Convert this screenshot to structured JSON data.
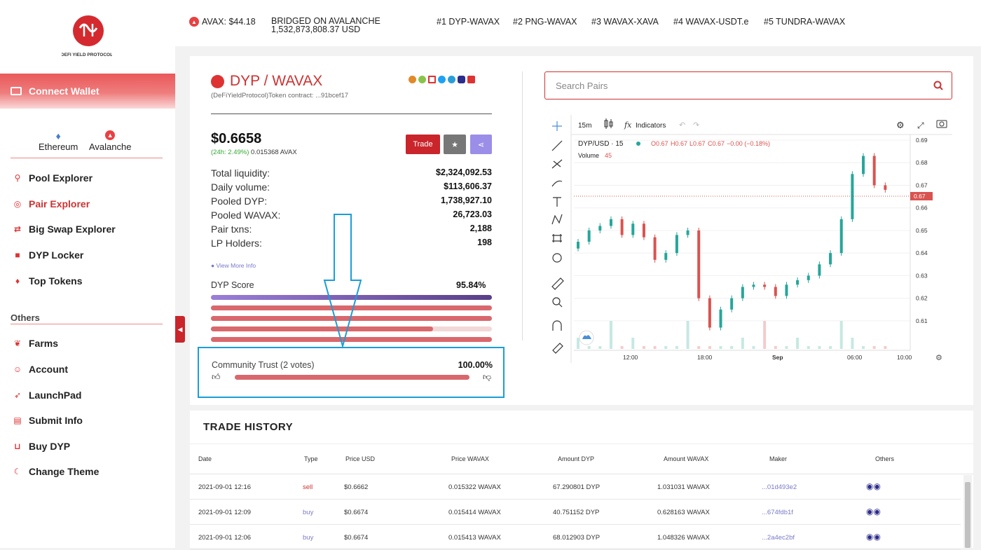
{
  "brand": {
    "name": "DeFi Yield Protocol"
  },
  "sidebar": {
    "connect_wallet": "Connect Wallet",
    "chains": [
      "Ethereum",
      "Avalanche"
    ],
    "nav": [
      "Pool Explorer",
      "Pair Explorer",
      "Big Swap Explorer",
      "DYP Locker",
      "Top Tokens"
    ],
    "others_label": "Others",
    "others": [
      "Farms",
      "Account",
      "LaunchPad",
      "Submit Info",
      "Buy DYP",
      "Change Theme"
    ],
    "active_item": "Pair Explorer"
  },
  "topbar": {
    "avax_price": "AVAX: $44.18",
    "bridged_label": "BRIDGED ON AVALANCHE",
    "bridged_value": "1,532,873,808.37 USD",
    "top_pairs": [
      "#1 DYP-WAVAX",
      "#2 PNG-WAVAX",
      "#3 WAVAX-XAVA",
      "#4 WAVAX-USDT.e",
      "#5 TUNDRA-WAVAX"
    ]
  },
  "pair": {
    "title": "DYP / WAVAX",
    "contract": "(DeFiYieldProtocol)Token contract: ...91bcef17",
    "price": "$0.6658",
    "change": "(24h: 2.49%)",
    "avax_price": "0.015368 AVAX",
    "trade_label": "Trade",
    "stats": [
      {
        "label": "Total liquidity:",
        "value": "$2,324,092.53"
      },
      {
        "label": "Daily volume:",
        "value": "$113,606.37"
      },
      {
        "label": "Pooled DYP:",
        "value": "1,738,927.10"
      },
      {
        "label": "Pooled WAVAX:",
        "value": "26,723.03"
      },
      {
        "label": "Pair txns:",
        "value": "2,188"
      },
      {
        "label": "LP Holders:",
        "value": "198"
      }
    ],
    "view_more": "View More Info",
    "score_label": "DYP Score",
    "score_value": "95.84%",
    "score_bars": [
      1.0,
      1.0,
      1.0,
      0.79,
      1.0
    ],
    "trust_label": "Community Trust (2 votes)",
    "trust_value": "100.00%",
    "trust_fill": 1.0
  },
  "search": {
    "placeholder": "Search Pairs"
  },
  "chart": {
    "interval": "15m",
    "indicators_label": "Indicators",
    "symbol": "DYP/USD · 15",
    "ohlc": {
      "o": "O0.67",
      "h": "H0.67",
      "l": "L0.67",
      "c": "C0.67",
      "chg": "−0.00 (−0.18%)"
    },
    "volume_label": "Volume",
    "volume_value": "45",
    "price_ticks": [
      "0.69",
      "0.68",
      "0.67",
      "0.66",
      "0.65",
      "0.64",
      "0.63",
      "0.62",
      "0.61"
    ],
    "last_price": "0.67",
    "time_ticks": [
      "12:00",
      "18:00",
      "Sep",
      "06:00",
      "10:00"
    ]
  },
  "chart_data": {
    "type": "candlestick",
    "title": "",
    "x_range": [
      "08-31 ~09:00",
      "09-01 ~12:00"
    ],
    "y_range": [
      0.605,
      0.69
    ],
    "ylabel": "",
    "candles_approx": [
      0.645,
      0.65,
      0.652,
      0.655,
      0.648,
      0.653,
      0.647,
      0.637,
      0.64,
      0.648,
      0.65,
      0.62,
      0.607,
      0.615,
      0.62,
      0.625,
      0.626,
      0.625,
      0.621,
      0.626,
      0.628,
      0.63,
      0.635,
      0.64,
      0.655,
      0.675,
      0.683,
      0.67,
      0.668
    ]
  },
  "trade_history": {
    "title": "TRADE HISTORY",
    "columns": [
      "Date",
      "Type",
      "Price USD",
      "Price WAVAX",
      "Amount DYP",
      "Amount WAVAX",
      "Maker",
      "Others"
    ],
    "rows": [
      {
        "date": "2021-09-01 12:16",
        "type": "sell",
        "usd": "$0.6662",
        "wavax": "0.015322 WAVAX",
        "dyp": "67.290801 DYP",
        "amt_wavax": "1.031031 WAVAX",
        "maker": "...01d493e2"
      },
      {
        "date": "2021-09-01 12:09",
        "type": "buy",
        "usd": "$0.6674",
        "wavax": "0.015414 WAVAX",
        "dyp": "40.751152 DYP",
        "amt_wavax": "0.628163 WAVAX",
        "maker": "...674fdb1f"
      },
      {
        "date": "2021-09-01 12:06",
        "type": "buy",
        "usd": "$0.6674",
        "wavax": "0.015413 WAVAX",
        "dyp": "68.012903 DYP",
        "amt_wavax": "1.048326 WAVAX",
        "maker": "...2a4ec2bf"
      }
    ]
  },
  "colors": {
    "brand_red": "#c9252b",
    "buy_purple": "#7a7acc",
    "score_purple": "#6b4fa0",
    "highlight_blue": "#1a9ed6",
    "candle_up": "#26a69a",
    "candle_down": "#d9534f"
  }
}
